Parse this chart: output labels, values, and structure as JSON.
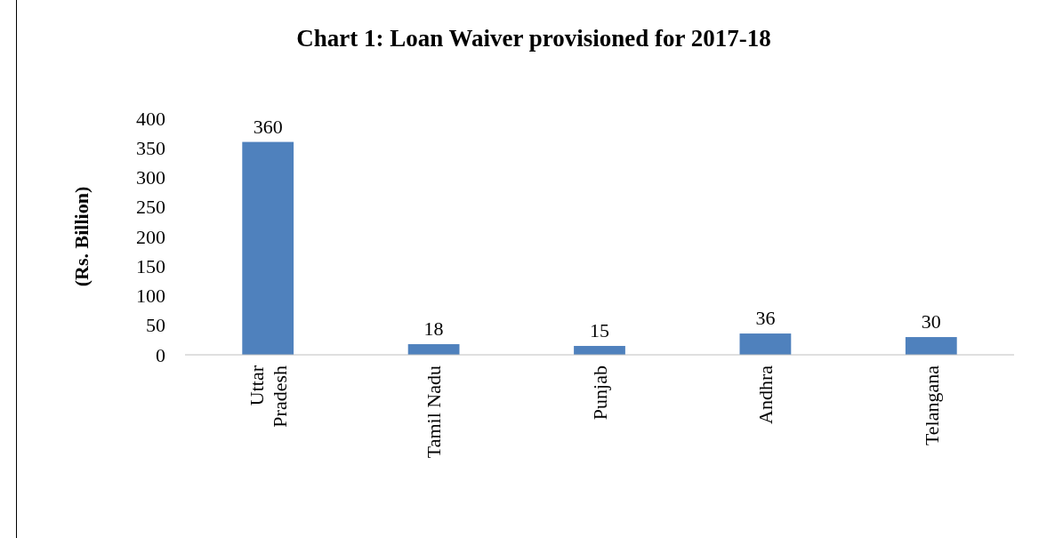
{
  "chart_data": {
    "type": "bar",
    "title": "Chart 1: Loan Waiver provisioned for 2017-18",
    "ylabel": "(Rs. Billion)",
    "categories": [
      "Uttar Pradesh",
      "Tamil Nadu",
      "Punjab",
      "Andhra",
      "Telangana"
    ],
    "values": [
      360,
      18,
      15,
      36,
      30
    ],
    "color": "#4f81bd",
    "ylim": [
      0,
      400
    ],
    "yticks": [
      0,
      50,
      100,
      150,
      200,
      250,
      300,
      350,
      400
    ],
    "grid": false,
    "data_labels": true
  }
}
